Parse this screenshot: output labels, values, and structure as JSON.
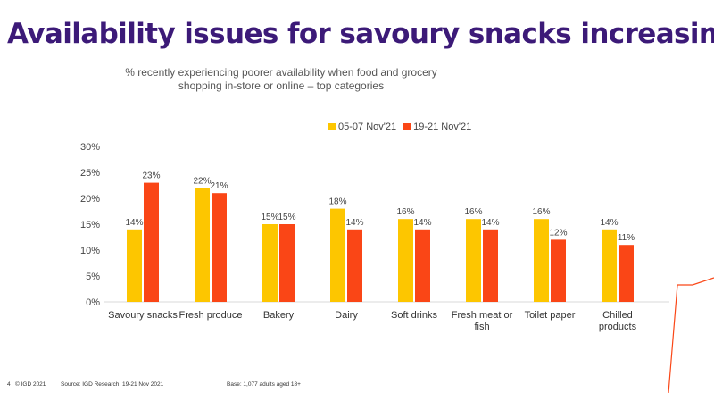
{
  "slide": {
    "title": "Availability issues for savoury snacks increasing",
    "subtitle": "% recently experiencing poorer availability when food and grocery shopping in-store or online – top categories",
    "page_number": "4",
    "copyright": "© IGD 2021",
    "source": "Source: IGD Research, 19-21 Nov 2021",
    "base": "Base: 1,077 adults aged 18+"
  },
  "colors": {
    "title": "#3c1a78",
    "series_1": "#fdc600",
    "series_2": "#fa4616",
    "accent_line": "#fa4616"
  },
  "chart_data": {
    "type": "bar",
    "categories": [
      "Savoury snacks",
      "Fresh produce",
      "Bakery",
      "Dairy",
      "Soft drinks",
      "Fresh meat or fish",
      "Toilet paper",
      "Chilled products"
    ],
    "category_lines": [
      [
        "Savoury snacks"
      ],
      [
        "Fresh produce"
      ],
      [
        "Bakery"
      ],
      [
        "Dairy"
      ],
      [
        "Soft drinks"
      ],
      [
        "Fresh meat or",
        "fish"
      ],
      [
        "Toilet paper"
      ],
      [
        "Chilled",
        "products"
      ]
    ],
    "series": [
      {
        "name": "05-07 Nov'21",
        "values": [
          14,
          22,
          15,
          18,
          16,
          16,
          16,
          14
        ],
        "labels": [
          "14%",
          "22%",
          "15%",
          "18%",
          "16%",
          "16%",
          "16%",
          "14%"
        ]
      },
      {
        "name": "19-21 Nov'21",
        "values": [
          23,
          21,
          15,
          14,
          14,
          14,
          12,
          11
        ],
        "labels": [
          "23%",
          "21%",
          "15%",
          "14%",
          "14%",
          "14%",
          "12%",
          "11%"
        ]
      }
    ],
    "ylim": [
      0,
      30
    ],
    "yticks": [
      0,
      5,
      10,
      15,
      20,
      25,
      30
    ],
    "ytick_labels": [
      "0%",
      "5%",
      "10%",
      "15%",
      "20%",
      "25%",
      "30%"
    ],
    "xlabel": "",
    "ylabel": "",
    "grid": false,
    "legend_position": "top-center"
  }
}
